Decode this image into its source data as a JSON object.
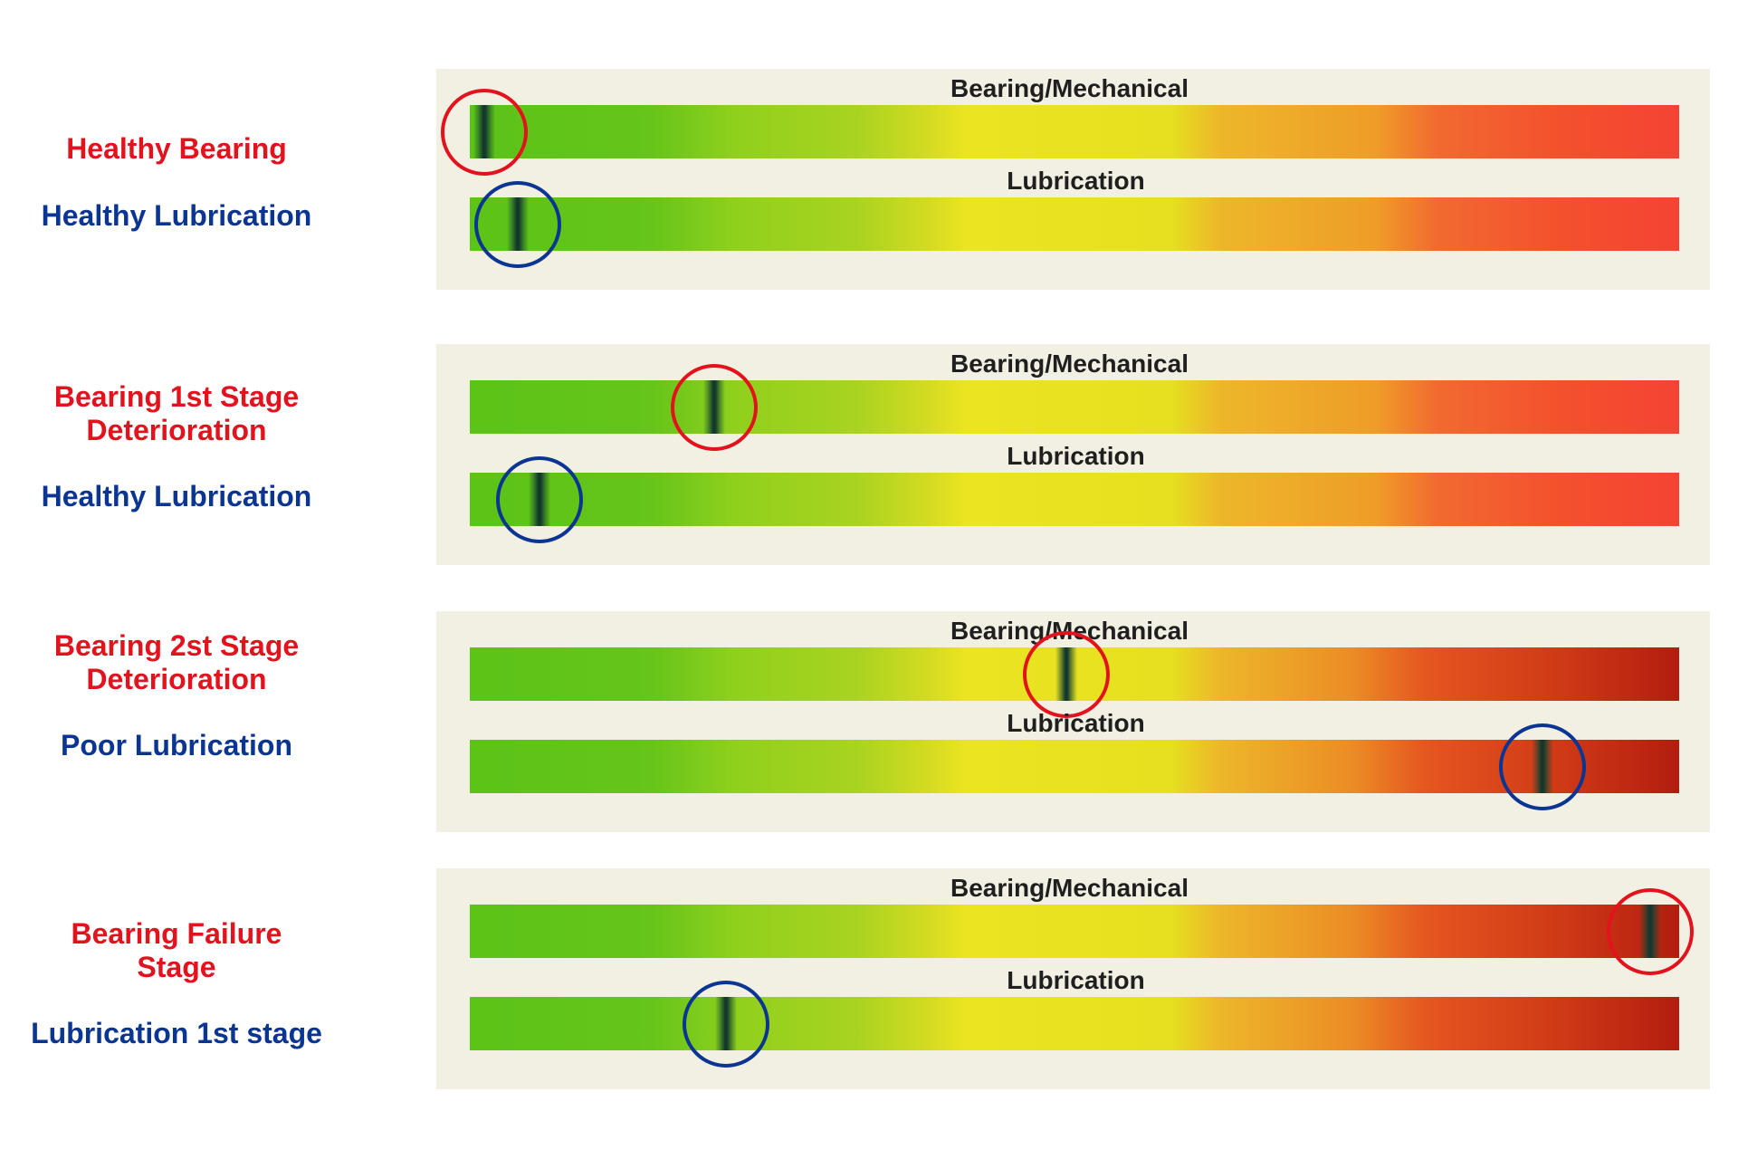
{
  "colors": {
    "bearing_label": "#e3131e",
    "lubrication_label": "#0b3592",
    "panel_background": "#f2efe3",
    "needle": "#14392c"
  },
  "scenarios": [
    {
      "bearing_label": "Healthy Bearing",
      "lubrication_label": "Healthy Lubrication",
      "bearing_title": "Bearing/Mechanical",
      "lubrication_title": "Lubrication",
      "bearing_value": 0.012,
      "lubrication_value": 0.04,
      "bearing_scale": "normal",
      "lubrication_scale": "normal"
    },
    {
      "bearing_label": "Bearing 1st Stage\nDeterioration",
      "lubrication_label": "Healthy Lubrication",
      "bearing_title": "Bearing/Mechanical",
      "lubrication_title": "Lubrication",
      "bearing_value": 0.202,
      "lubrication_value": 0.058,
      "bearing_scale": "normal",
      "lubrication_scale": "normal"
    },
    {
      "bearing_label": "Bearing 2st Stage\nDeterioration",
      "lubrication_label": "Poor Lubrication",
      "bearing_title": "Bearing/Mechanical",
      "lubrication_title": "Lubrication",
      "bearing_value": 0.493,
      "lubrication_value": 0.887,
      "bearing_scale": "dark",
      "lubrication_scale": "dark"
    },
    {
      "bearing_label": "Bearing Failure\nStage",
      "lubrication_label": "Lubrication 1st stage",
      "bearing_title": "Bearing/Mechanical",
      "lubrication_title": "Lubrication",
      "bearing_value": 0.976,
      "lubrication_value": 0.212,
      "bearing_scale": "dark",
      "lubrication_scale": "dark"
    }
  ]
}
